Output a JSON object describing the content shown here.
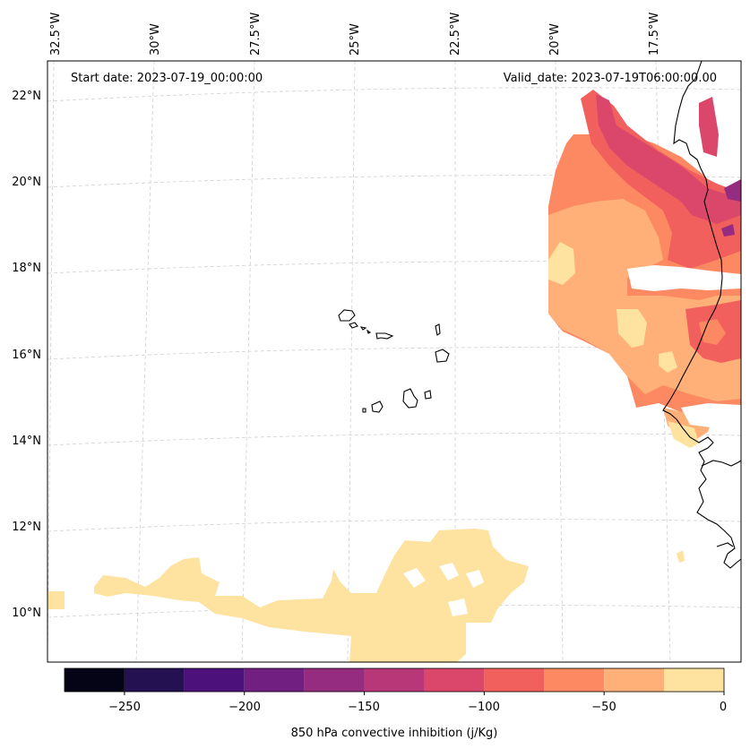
{
  "annotations": {
    "start_date": "Start date: 2023-07-19_00:00:00",
    "valid_date": "Valid_date: 2023-07-19T06:00:00.00"
  },
  "map": {
    "longitude_ticks": [
      "32.5°W",
      "30°W",
      "27.5°W",
      "25°W",
      "22.5°W",
      "20°W",
      "17.5°W"
    ],
    "latitude_ticks": [
      "22°N",
      "20°N",
      "18°N",
      "16°N",
      "14°N",
      "12°N",
      "10°N"
    ],
    "gridlines": true
  },
  "colorbar": {
    "label": "850 hPa convective inhibition (j/Kg)",
    "tick_labels": [
      "−250",
      "−200",
      "−150",
      "−100",
      "−50",
      "0"
    ],
    "bins": [
      -275,
      -250,
      -225,
      -200,
      -175,
      -150,
      -125,
      -100,
      -75,
      -50,
      -25,
      0
    ],
    "colors": [
      "#050416",
      "#231151",
      "#4c117a",
      "#711f81",
      "#952c80",
      "#b73779",
      "#db476a",
      "#f1605d",
      "#fc8961",
      "#feb078",
      "#fde2a0"
    ]
  }
}
